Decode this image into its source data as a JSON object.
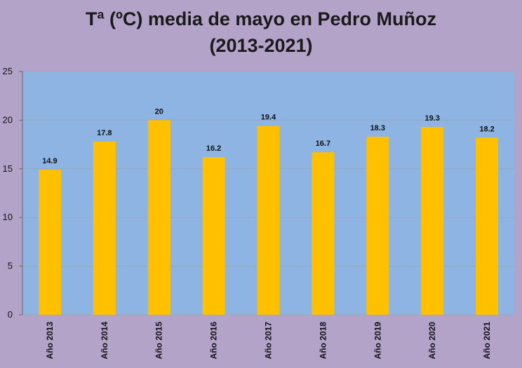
{
  "chart_data": {
    "type": "bar",
    "title_line1": "Tª (ºC) media de mayo en Pedro Muñoz",
    "title_line2": "(2013-2021)",
    "categories": [
      "Año 2013",
      "Año 2014",
      "Año 2015",
      "Año 2016",
      "Año 2017",
      "Año 2018",
      "Año 2019",
      "Año 2020",
      "Año 2021"
    ],
    "values": [
      14.9,
      17.8,
      20,
      16.2,
      19.4,
      16.7,
      18.3,
      19.3,
      18.2
    ],
    "data_labels": [
      "14.9",
      "17.8",
      "20",
      "16.2",
      "19.4",
      "16.7",
      "18.3",
      "19.3",
      "18.2"
    ],
    "ylim": [
      0,
      25
    ],
    "yticks": [
      0,
      5,
      10,
      15,
      20,
      25
    ],
    "grid": true,
    "legend": "none",
    "xlabel": "",
    "ylabel": "",
    "colors": {
      "bar": "#ffc000",
      "plot_background": "#8db4e2",
      "page_background": "#b4a3c9",
      "gridline": "#9aa7b8"
    }
  }
}
